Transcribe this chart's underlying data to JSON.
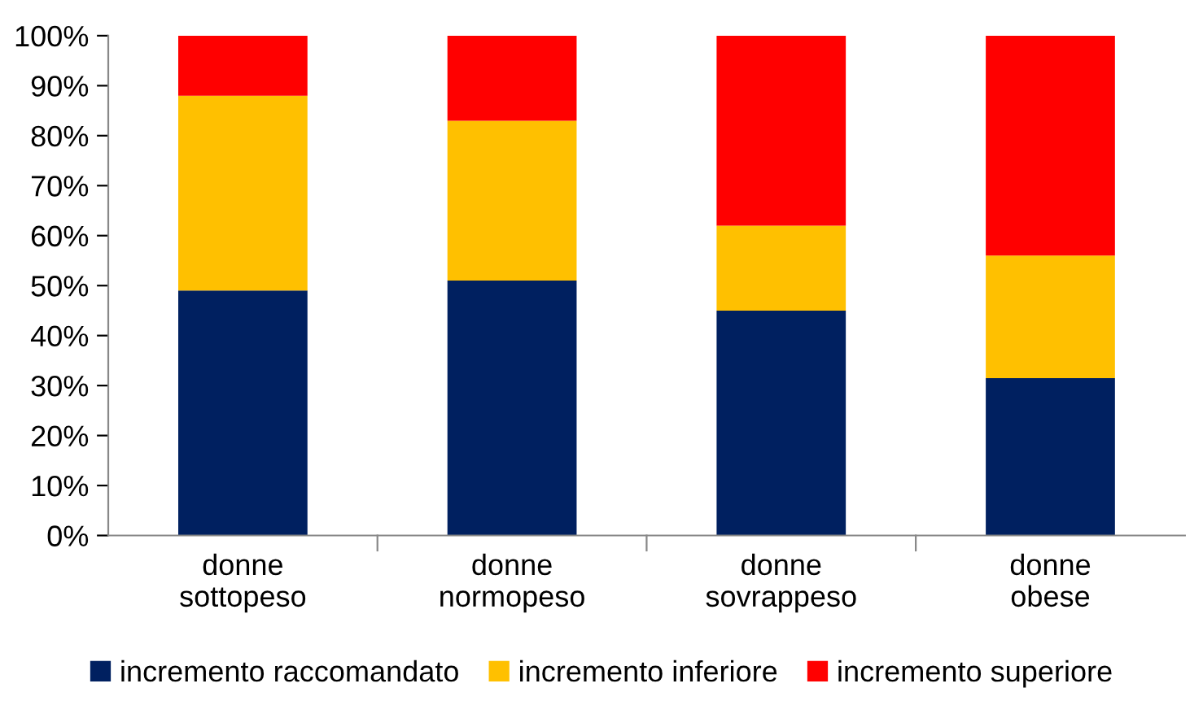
{
  "chart_data": {
    "type": "bar",
    "stacked": true,
    "categories": [
      "donne\nsottopeso",
      "donne\nnormopeso",
      "donne\nsovrappeso",
      "donne\nobese"
    ],
    "series": [
      {
        "name": "incremento raccomandato",
        "color": "#002060",
        "values": [
          49,
          51,
          45,
          31.5
        ]
      },
      {
        "name": "incremento inferiore",
        "color": "#ffc000",
        "values": [
          39,
          32,
          17,
          24.5
        ]
      },
      {
        "name": "incremento superiore",
        "color": "#ff0000",
        "values": [
          12,
          17,
          38,
          44
        ]
      }
    ],
    "ylim": [
      0,
      100
    ],
    "yticks": [
      {
        "value": 0,
        "label": "0%"
      },
      {
        "value": 10,
        "label": "10%"
      },
      {
        "value": 20,
        "label": "20%"
      },
      {
        "value": 30,
        "label": "30%"
      },
      {
        "value": 40,
        "label": "40%"
      },
      {
        "value": 50,
        "label": "50%"
      },
      {
        "value": 60,
        "label": "60%"
      },
      {
        "value": 70,
        "label": "70%"
      },
      {
        "value": 80,
        "label": "80%"
      },
      {
        "value": 90,
        "label": "90%"
      },
      {
        "value": 100,
        "label": "100%"
      }
    ],
    "grid": false,
    "legend": "bottom"
  }
}
